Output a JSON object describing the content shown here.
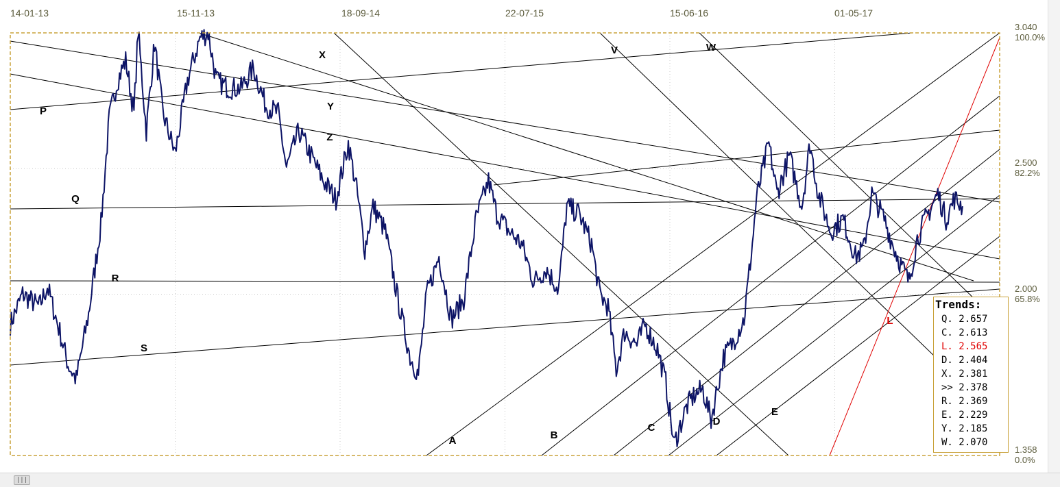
{
  "chart_data": {
    "type": "line",
    "x_ticks": [
      "14-01-13",
      "15-11-13",
      "18-09-14",
      "22-07-15",
      "15-06-16",
      "01-05-17"
    ],
    "y_ticks": [
      {
        "value": "3.040",
        "pct": "100.0%"
      },
      {
        "value": "2.500",
        "pct": "82.2%"
      },
      {
        "value": "2.000",
        "pct": "65.8%"
      },
      {
        "value": "1.358",
        "pct": "0.0%"
      }
    ],
    "ylim": [
      1.358,
      3.04
    ],
    "xlim": [
      0,
      240
    ],
    "grid": true,
    "line_labels": [
      "P",
      "Q",
      "R",
      "S",
      "X",
      "Y",
      "Z",
      "V",
      "W",
      "A",
      "B",
      "C",
      "D",
      "E",
      "L"
    ],
    "price_anchors": [
      [
        0,
        1.88
      ],
      [
        3,
        2.0
      ],
      [
        7,
        1.95
      ],
      [
        9,
        2.03
      ],
      [
        12,
        1.85
      ],
      [
        14,
        1.72
      ],
      [
        16,
        1.66
      ],
      [
        19,
        1.92
      ],
      [
        22,
        2.28
      ],
      [
        24,
        2.7
      ],
      [
        26,
        2.85
      ],
      [
        28,
        2.93
      ],
      [
        30,
        2.72
      ],
      [
        31,
        3.05
      ],
      [
        33,
        2.65
      ],
      [
        35,
        3.0
      ],
      [
        37,
        2.72
      ],
      [
        40,
        2.56
      ],
      [
        43,
        2.85
      ],
      [
        46,
        3.02
      ],
      [
        48,
        3.04
      ],
      [
        50,
        2.85
      ],
      [
        53,
        2.82
      ],
      [
        56,
        2.82
      ],
      [
        59,
        2.9
      ],
      [
        62,
        2.75
      ],
      [
        65,
        2.72
      ],
      [
        67,
        2.5
      ],
      [
        70,
        2.65
      ],
      [
        73,
        2.55
      ],
      [
        76,
        2.45
      ],
      [
        79,
        2.38
      ],
      [
        82,
        2.6
      ],
      [
        84,
        2.42
      ],
      [
        86,
        2.18
      ],
      [
        88,
        2.35
      ],
      [
        91,
        2.25
      ],
      [
        94,
        1.98
      ],
      [
        97,
        1.75
      ],
      [
        99,
        1.68
      ],
      [
        101,
        2.0
      ],
      [
        104,
        2.15
      ],
      [
        107,
        1.9
      ],
      [
        110,
        1.98
      ],
      [
        113,
        2.3
      ],
      [
        116,
        2.45
      ],
      [
        118,
        2.32
      ],
      [
        121,
        2.25
      ],
      [
        124,
        2.2
      ],
      [
        127,
        2.05
      ],
      [
        130,
        2.1
      ],
      [
        133,
        2.02
      ],
      [
        135,
        2.35
      ],
      [
        138,
        2.32
      ],
      [
        141,
        2.2
      ],
      [
        143,
        2.0
      ],
      [
        145,
        1.95
      ],
      [
        147,
        1.7
      ],
      [
        149,
        1.85
      ],
      [
        152,
        1.8
      ],
      [
        154,
        1.88
      ],
      [
        157,
        1.78
      ],
      [
        159,
        1.65
      ],
      [
        161,
        1.4
      ],
      [
        164,
        1.55
      ],
      [
        166,
        1.6
      ],
      [
        168,
        1.62
      ],
      [
        170,
        1.5
      ],
      [
        173,
        1.75
      ],
      [
        175,
        1.8
      ],
      [
        178,
        1.9
      ],
      [
        180,
        2.2
      ],
      [
        181,
        2.38
      ],
      [
        184,
        2.6
      ],
      [
        186,
        2.4
      ],
      [
        189,
        2.55
      ],
      [
        192,
        2.35
      ],
      [
        194,
        2.6
      ],
      [
        196,
        2.4
      ],
      [
        199,
        2.25
      ],
      [
        202,
        2.3
      ],
      [
        205,
        2.15
      ],
      [
        207,
        2.18
      ],
      [
        209,
        2.4
      ],
      [
        212,
        2.3
      ],
      [
        214,
        2.2
      ],
      [
        216,
        2.12
      ],
      [
        218,
        2.05
      ],
      [
        220,
        2.22
      ],
      [
        222,
        2.3
      ],
      [
        225,
        2.4
      ],
      [
        227,
        2.3
      ],
      [
        229,
        2.38
      ],
      [
        231,
        2.35
      ]
    ],
    "trends_panel": {
      "title": "Trends:",
      "rows": [
        {
          "label": "Q.",
          "value": "2.657",
          "color": "#000000"
        },
        {
          "label": "C.",
          "value": "2.613",
          "color": "#000000"
        },
        {
          "label": "L.",
          "value": "2.565",
          "color": "#e00000"
        },
        {
          "label": "D.",
          "value": "2.404",
          "color": "#000000"
        },
        {
          "label": "X.",
          "value": "2.381",
          "color": "#000000"
        },
        {
          "label": ">>",
          "value": "2.378",
          "color": "#000000"
        },
        {
          "label": "R.",
          "value": "2.369",
          "color": "#000000"
        },
        {
          "label": "E.",
          "value": "2.229",
          "color": "#000000"
        },
        {
          "label": "Y.",
          "value": "2.185",
          "color": "#000000"
        },
        {
          "label": "W.",
          "value": "2.070",
          "color": "#000000"
        }
      ]
    },
    "colors": {
      "price": "#0d1466",
      "trend": "#000000",
      "red_trend": "#e00000",
      "border": "#c9a23a",
      "grid": "#c8c8c8"
    }
  }
}
